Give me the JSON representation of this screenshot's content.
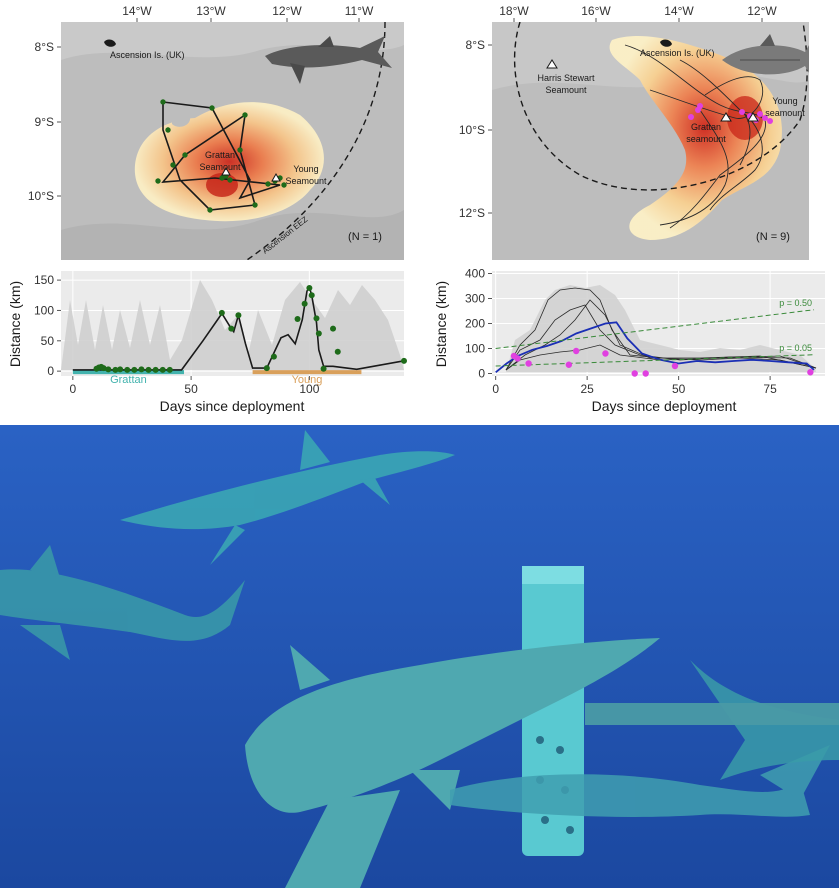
{
  "shark_map": {
    "lon_ticks": [
      "14°W",
      "13°W",
      "12°W",
      "11°W"
    ],
    "lat_ticks": [
      "8°S",
      "9°S",
      "10°S"
    ],
    "island_label": "Ascension Is. (UK)",
    "grattan_label": [
      "Grattan",
      "Seamount"
    ],
    "young_label": [
      "Young",
      "Seamount"
    ],
    "eez_label": "Ascension EEZ",
    "n_label": "(N = 1)"
  },
  "tuna_map": {
    "lon_ticks": [
      "18°W",
      "16°W",
      "14°W",
      "12°W"
    ],
    "lat_ticks": [
      "8°S",
      "10°S",
      "12°S"
    ],
    "island_label": "Ascension Is. (UK)",
    "harris_label": [
      "Harris Stewart",
      "Seamount"
    ],
    "grattan_label": [
      "Grattan",
      "seamount"
    ],
    "young_label": [
      "Young",
      "seamount"
    ],
    "n_label": "(N = 9)"
  },
  "colors": {
    "panel_bg": "#ebebeb",
    "map_bg": "#bdbdbd",
    "track": "#1a1a1a",
    "shark_points": "#1e6b1a",
    "tuna_points": "#e040e0",
    "mean_line": "#1b2fb5",
    "ref_line": "#3a8a3a",
    "grattan_bar": "#43b3ae",
    "young_bar": "#d9a05b",
    "ocean": "#1d4fa8"
  },
  "chart_data": [
    {
      "type": "line",
      "title": "",
      "xlabel": "Days since deployment",
      "ylabel": "Distance (km)",
      "xlim": [
        -5,
        140
      ],
      "ylim": [
        -8,
        165
      ],
      "x_ticks": [
        0,
        50,
        100
      ],
      "y_ticks": [
        0,
        50,
        100,
        150
      ],
      "grid": true,
      "series": [
        {
          "x": [
            0,
            10,
            20,
            30,
            40,
            46,
            55,
            63,
            67,
            68,
            70,
            73,
            76,
            82,
            88,
            91,
            94,
            97,
            99,
            100,
            101,
            103,
            104,
            106,
            110,
            120,
            130,
            140
          ],
          "y": [
            2,
            2,
            2,
            2,
            2,
            2,
            50,
            95,
            70,
            65,
            92,
            45,
            5,
            5,
            55,
            60,
            45,
            85,
            132,
            138,
            125,
            80,
            35,
            8,
            8,
            3,
            10,
            17
          ]
        }
      ],
      "points": {
        "x": [
          10,
          11,
          12,
          13,
          15,
          18,
          20,
          23,
          26,
          29,
          32,
          35,
          38,
          41,
          63,
          67,
          70,
          82,
          85,
          95,
          98,
          100,
          101,
          103,
          104,
          106,
          110,
          112,
          140
        ],
        "y": [
          4,
          6,
          7,
          5,
          3,
          2,
          3,
          2,
          2,
          3,
          2,
          2,
          2,
          2,
          96,
          70,
          92,
          5,
          24,
          86,
          111,
          137,
          125,
          87,
          62,
          4,
          70,
          32,
          17
        ]
      },
      "annotations": [
        {
          "label": "Grattan",
          "x_range": [
            0,
            47
          ]
        },
        {
          "label": "Young",
          "x_range": [
            76,
            122
          ]
        }
      ]
    },
    {
      "type": "line",
      "title": "",
      "xlabel": "Days since deployment",
      "ylabel": "Distance (km)",
      "xlim": [
        -1,
        90
      ],
      "ylim": [
        -10,
        410
      ],
      "x_ticks": [
        0,
        25,
        50,
        75
      ],
      "y_ticks": [
        0,
        100,
        200,
        300,
        400
      ],
      "grid": true,
      "series": [
        {
          "name": "mean",
          "x": [
            0,
            3,
            6,
            10,
            14,
            18,
            22,
            26,
            30,
            33,
            36,
            38,
            40,
            45,
            50,
            55,
            60,
            65,
            70,
            75,
            80,
            85,
            87
          ],
          "y": [
            5,
            40,
            70,
            95,
            110,
            130,
            160,
            180,
            200,
            205,
            140,
            110,
            80,
            55,
            40,
            50,
            45,
            50,
            55,
            50,
            45,
            40,
            15
          ]
        },
        {
          "name": "p = 0.50",
          "x": [
            0,
            87
          ],
          "y": [
            100,
            255
          ]
        },
        {
          "name": "p = 0.05",
          "x": [
            0,
            87
          ],
          "y": [
            30,
            75
          ]
        }
      ],
      "points": {
        "x": [
          5,
          6,
          9,
          20,
          22,
          30,
          38,
          41,
          49,
          86
        ],
        "y": [
          70,
          60,
          40,
          35,
          90,
          80,
          0,
          0,
          30,
          5
        ]
      }
    }
  ]
}
